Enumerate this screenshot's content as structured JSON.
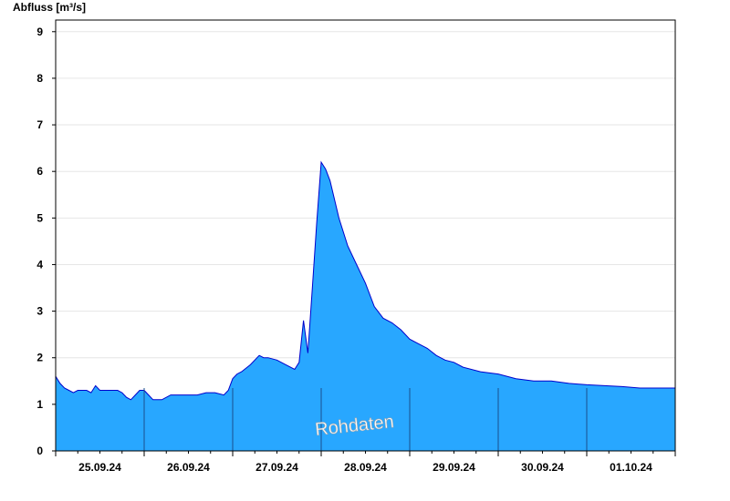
{
  "chart_data": {
    "type": "area",
    "ylabel": "Abfluss [m³/s]",
    "watermark": "Rohdaten",
    "ylim": [
      0,
      9
    ],
    "yticks": [
      "0",
      "1",
      "2",
      "3",
      "4",
      "5",
      "6",
      "7",
      "8",
      "9"
    ],
    "x_range": [
      0,
      7
    ],
    "x_day_labels": [
      "25.09.24",
      "26.09.24",
      "27.09.24",
      "28.09.24",
      "29.09.24",
      "30.09.24",
      "01.10.24"
    ],
    "grid": true,
    "fill_color": "#28a7ff",
    "line_color": "#0000cc",
    "series": [
      {
        "x": [
          0.0,
          0.05,
          0.1,
          0.15,
          0.2,
          0.25,
          0.3,
          0.35,
          0.4,
          0.45,
          0.5,
          0.6,
          0.7,
          0.75,
          0.8,
          0.85,
          0.9,
          0.95,
          1.0,
          1.05,
          1.1,
          1.15,
          1.2,
          1.3,
          1.35,
          1.4,
          1.5,
          1.6,
          1.7,
          1.8,
          1.9,
          1.95,
          2.0,
          2.05,
          2.1,
          2.2,
          2.3,
          2.35,
          2.4,
          2.5,
          2.6,
          2.7,
          2.75,
          2.8,
          2.85,
          2.9,
          2.95,
          3.0,
          3.05,
          3.1,
          3.2,
          3.3,
          3.4,
          3.5,
          3.6,
          3.7,
          3.8,
          3.9,
          4.0,
          4.1,
          4.2,
          4.3,
          4.4,
          4.5,
          4.6,
          4.8,
          5.0,
          5.2,
          5.4,
          5.6,
          5.8,
          6.0,
          6.2,
          6.4,
          6.6,
          6.8,
          7.0
        ],
        "y": [
          1.6,
          1.45,
          1.35,
          1.3,
          1.25,
          1.3,
          1.3,
          1.3,
          1.25,
          1.4,
          1.3,
          1.3,
          1.3,
          1.25,
          1.15,
          1.1,
          1.2,
          1.3,
          1.3,
          1.2,
          1.1,
          1.1,
          1.1,
          1.2,
          1.2,
          1.2,
          1.2,
          1.2,
          1.25,
          1.25,
          1.2,
          1.3,
          1.55,
          1.65,
          1.7,
          1.85,
          2.05,
          2.0,
          2.0,
          1.95,
          1.85,
          1.75,
          1.9,
          2.8,
          2.1,
          3.5,
          4.9,
          6.2,
          6.05,
          5.8,
          5.0,
          4.4,
          4.0,
          3.6,
          3.1,
          2.85,
          2.75,
          2.6,
          2.4,
          2.3,
          2.2,
          2.05,
          1.95,
          1.9,
          1.8,
          1.7,
          1.65,
          1.55,
          1.5,
          1.5,
          1.45,
          1.42,
          1.4,
          1.38,
          1.35,
          1.35,
          1.35
        ]
      }
    ]
  }
}
